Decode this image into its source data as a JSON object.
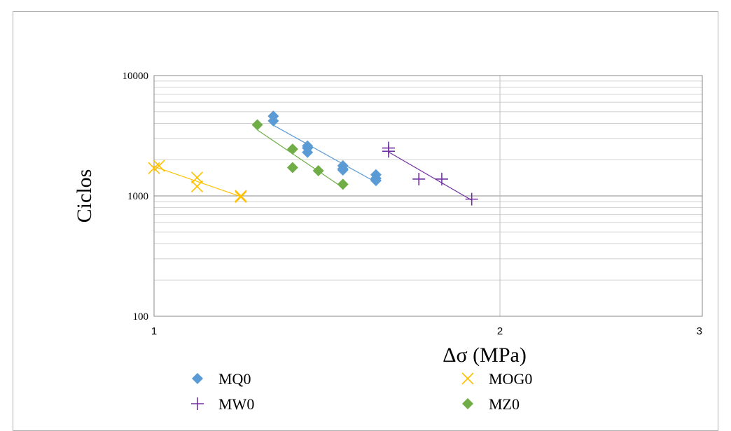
{
  "chart_data": {
    "type": "scatter",
    "title": "",
    "xlabel": "Δσ (MPa)",
    "ylabel": "Ciclos",
    "x_scale": "log",
    "y_scale": "log",
    "xlim": [
      1,
      3
    ],
    "ylim": [
      100,
      10000
    ],
    "x_ticks": [
      "1",
      "2",
      "3"
    ],
    "y_ticks": [
      "100",
      "1000",
      "10000"
    ],
    "grid": true,
    "legend_position": "bottom",
    "series": [
      {
        "name": "MQ0",
        "marker": "diamond",
        "color": "#5b9bd5",
        "trendline": true,
        "x": [
          1.27,
          1.27,
          1.36,
          1.36,
          1.36,
          1.46,
          1.46,
          1.46,
          1.56,
          1.56,
          1.56
        ],
        "y": [
          4600,
          4200,
          2600,
          2500,
          2300,
          1780,
          1680,
          1640,
          1500,
          1400,
          1340
        ]
      },
      {
        "name": "MOG0",
        "marker": "x",
        "color": "#ffc000",
        "trendline": true,
        "x": [
          1.0,
          1.01,
          1.09,
          1.09,
          1.19,
          1.19
        ],
        "y": [
          1700,
          1780,
          1420,
          1200,
          980,
          1000
        ]
      },
      {
        "name": "MW0",
        "marker": "plus",
        "color": "#7030a0",
        "trendline": true,
        "x": [
          1.6,
          1.6,
          1.7,
          1.78,
          1.89
        ],
        "y": [
          2500,
          2350,
          1380,
          1380,
          940
        ]
      },
      {
        "name": "MZ0",
        "marker": "diamond",
        "color": "#70ad47",
        "trendline": true,
        "x": [
          1.23,
          1.32,
          1.32,
          1.39,
          1.46
        ],
        "y": [
          3900,
          2450,
          1720,
          1620,
          1250
        ]
      }
    ]
  }
}
